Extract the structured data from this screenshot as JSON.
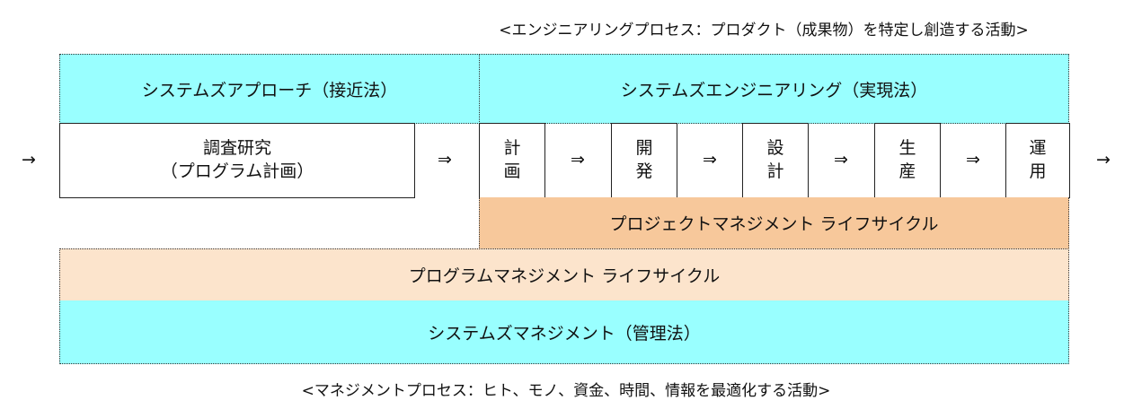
{
  "engineering_caption": "<エンジニアリングプロセス：プロダクト（成果物）を特定し創造する活動>",
  "systems_approach": "システムズアプローチ（接近法）",
  "systems_engineering": "システムズエンジニアリング（実現法）",
  "research_box": {
    "line1": "調査研究",
    "line2": "（プログラム計画）"
  },
  "stages": [
    {
      "l1": "計",
      "l2": "画"
    },
    {
      "l1": "開",
      "l2": "発"
    },
    {
      "l1": "設",
      "l2": "計"
    },
    {
      "l1": "生",
      "l2": "産"
    },
    {
      "l1": "運",
      "l2": "用"
    }
  ],
  "flow_arrow": "⇒",
  "edge_arrow": "→",
  "project_lifecycle": "プロジェクトマネジメント ライフサイクル",
  "program_lifecycle": "プログラムマネジメント ライフサイクル",
  "systems_management": "システムズマネジメント（管理法）",
  "management_caption": "<マネジメントプロセス：ヒト、モノ、資金、時間、情報を最適化する活動>",
  "colors": {
    "cyan": "#99ffff",
    "project": "#f7c89b",
    "program": "#fce4cc"
  }
}
